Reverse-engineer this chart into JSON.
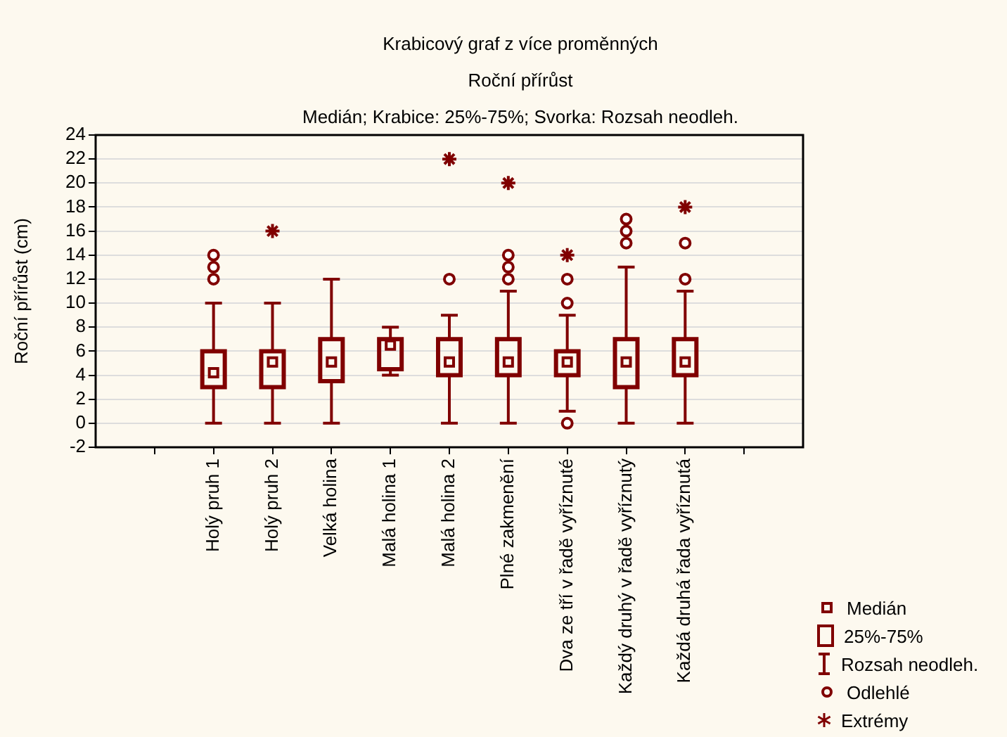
{
  "chart_data": {
    "type": "box",
    "title": "Krabicový graf z více proměnných",
    "subtitle": "Roční přírůst",
    "annotations": [
      "Medián; Krabice: 25%-75%; Svorka: Rozsah neodleh.",
      "Medián",
      "25%-75%",
      "Rozsah neodleh.",
      "Odlehlé"
    ],
    "ylabel": "Roční přírůst (cm)",
    "categories": [
      "Holý pruh 1",
      "Holý pruh 2",
      "Velká holina",
      "Malá holina 1",
      "Malá holina 2",
      "Plné zakmenění",
      "Dva ze tří v řadě vyříznuté",
      "Každý druhý v řadě vyříznutý",
      "Každá druhá řada vyříznutá"
    ],
    "ylim": [
      -2,
      24
    ],
    "yticks": [
      -2,
      0,
      2,
      4,
      6,
      8,
      10,
      12,
      14,
      16,
      18,
      20,
      22,
      24
    ],
    "grid": "y",
    "legend": "bottom right",
    "series": [
      {
        "type": "box",
        "color": "#800000",
        "boxes": [
          {
            "low": 0,
            "q1": 3,
            "median": 4.2,
            "q3": 6,
            "high": 10,
            "outliers": [
              12,
              13,
              14
            ]
          },
          {
            "low": 0,
            "q1": 3,
            "median": 5.1,
            "q3": 6,
            "high": 10
          },
          {
            "low": 0,
            "q1": 3.5,
            "median": 5.1,
            "q3": 7,
            "high": 12
          },
          {
            "low": 4,
            "q1": 4.5,
            "median": 6.5,
            "q3": 7,
            "high": 8
          },
          {
            "low": 0,
            "q1": 4,
            "median": 5.1,
            "q3": 7,
            "high": 9,
            "outliers": [
              12
            ]
          },
          {
            "low": 0,
            "q1": 4,
            "median": 5.1,
            "q3": 7,
            "high": 11,
            "outliers": [
              12,
              13,
              14
            ]
          },
          {
            "low": 1,
            "q1": 4,
            "median": 5.1,
            "q3": 6,
            "high": 9,
            "outliers": [
              0,
              10,
              12
            ]
          },
          {
            "low": 0,
            "q1": 3,
            "median": 5.1,
            "q3": 7,
            "high": 13,
            "outliers": [
              15,
              16,
              17
            ]
          },
          {
            "low": 0,
            "q1": 4,
            "median": 5.1,
            "q3": 7,
            "high": 11,
            "outliers": [
              12,
              15
            ]
          }
        ]
      },
      {
        "type": "scatter",
        "name": "Extrémy",
        "color": "#800000",
        "marker": "cross",
        "x": [
          "Holý pruh 2",
          "Malá holina 2",
          "Plné zakmenění",
          "Dva ze tří v řadě vyříznuté",
          "Každá druhá řada vyříznutá"
        ],
        "values": [
          16,
          22,
          20,
          14,
          18
        ]
      }
    ]
  }
}
